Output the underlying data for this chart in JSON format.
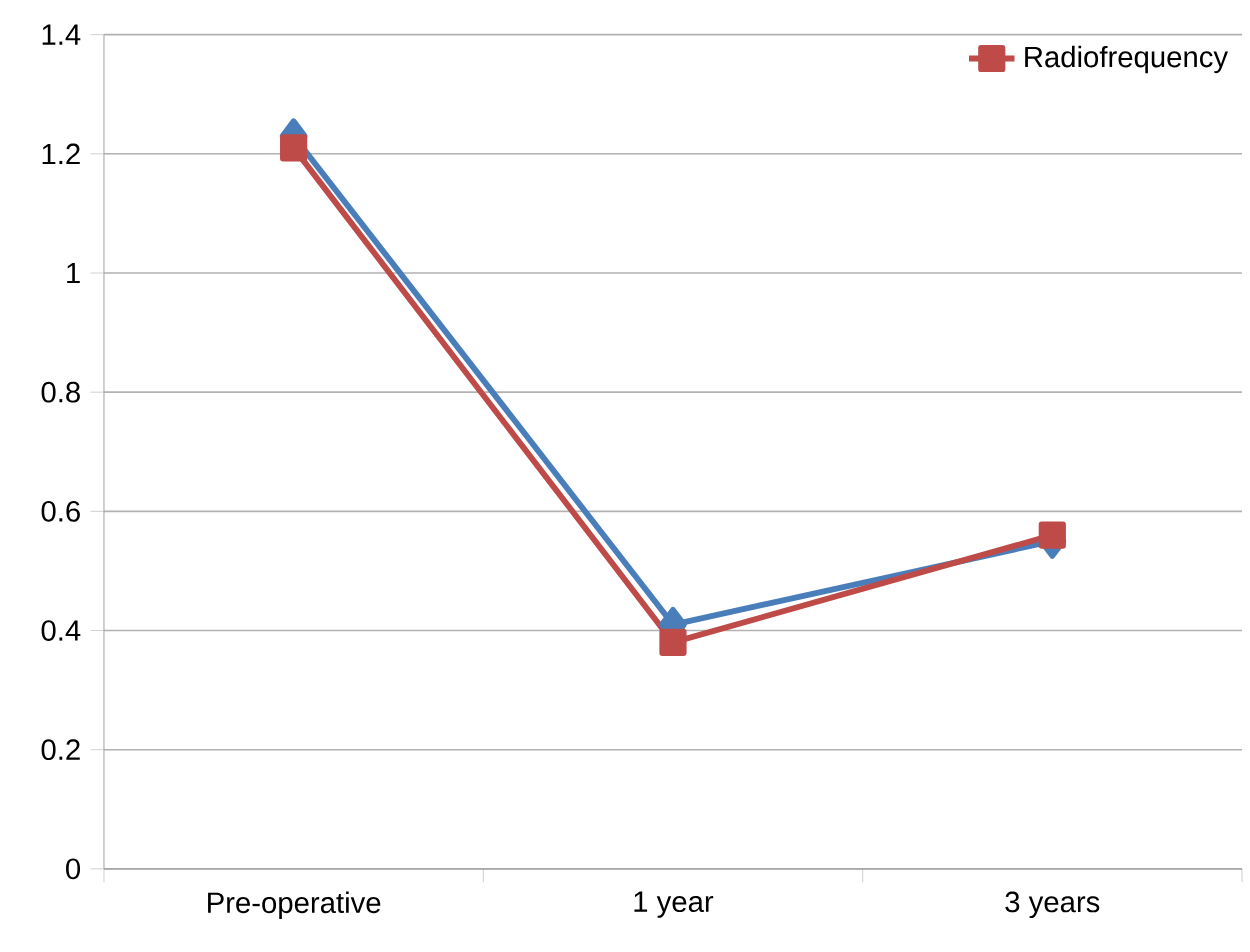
{
  "chart_data": {
    "type": "line",
    "categories": [
      "Pre-operative",
      "1 year",
      "3 years"
    ],
    "series": [
      {
        "color": "#4a7ebb",
        "values": [
          1.23,
          0.41,
          0.55
        ],
        "marker": "diamond"
      },
      {
        "name": "Radiofrequency",
        "color": "#be4b48",
        "values": [
          1.21,
          0.38,
          0.56
        ],
        "marker": "square"
      }
    ],
    "ylim": [
      0,
      1.4
    ],
    "yticks": [
      0,
      0.2,
      0.4,
      0.6,
      0.8,
      1,
      1.2,
      1.4
    ],
    "grid": "y",
    "legend": "top right",
    "line_style": "solid"
  }
}
